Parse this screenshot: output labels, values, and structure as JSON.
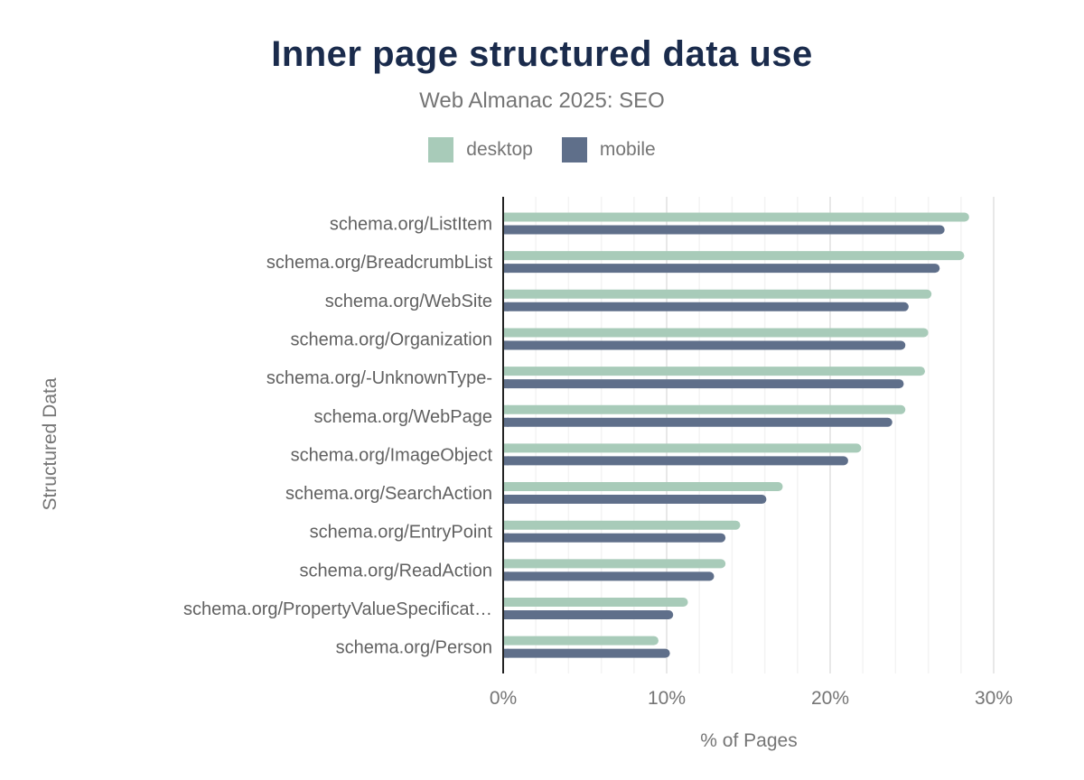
{
  "chart_data": {
    "type": "bar",
    "orientation": "horizontal",
    "title": "Inner page structured data use",
    "subtitle": "Web Almanac 2025: SEO",
    "xlabel": "% of Pages",
    "ylabel": "Structured Data",
    "xlim": [
      0,
      30
    ],
    "x_ticks": [
      "0%",
      "10%",
      "20%",
      "30%"
    ],
    "grid": true,
    "legend_position": "top",
    "categories": [
      "schema.org/ListItem",
      "schema.org/BreadcrumbList",
      "schema.org/WebSite",
      "schema.org/Organization",
      "schema.org/-UnknownType-",
      "schema.org/WebPage",
      "schema.org/ImageObject",
      "schema.org/SearchAction",
      "schema.org/EntryPoint",
      "schema.org/ReadAction",
      "schema.org/PropertyValueSpecificat…",
      "schema.org/Person"
    ],
    "series": [
      {
        "name": "desktop",
        "color": "#a8cbb9",
        "values": [
          28.5,
          28.2,
          26.2,
          26.0,
          25.8,
          24.6,
          21.9,
          17.1,
          14.5,
          13.6,
          11.3,
          9.5
        ]
      },
      {
        "name": "mobile",
        "color": "#5f6f8a",
        "values": [
          27.0,
          26.7,
          24.8,
          24.6,
          24.5,
          23.8,
          21.1,
          16.1,
          13.6,
          12.9,
          10.4,
          10.2
        ]
      }
    ]
  }
}
